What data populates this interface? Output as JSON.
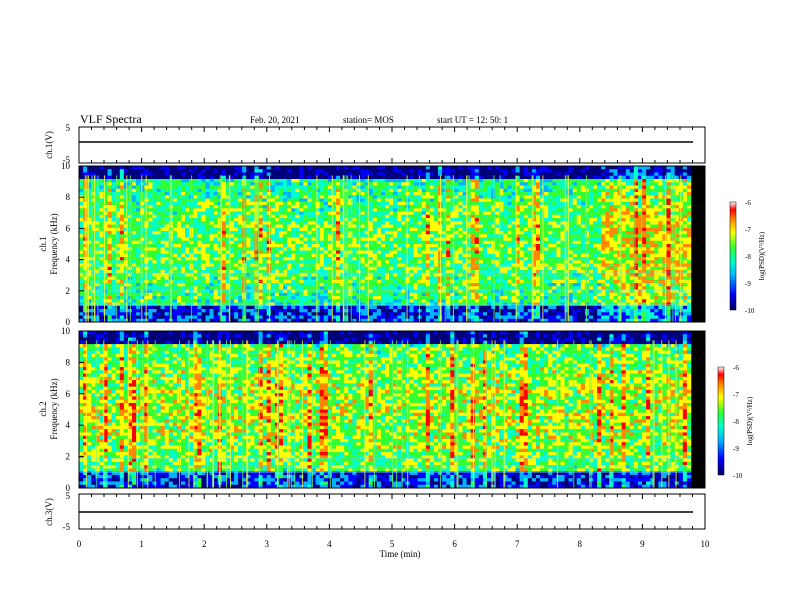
{
  "header": {
    "title": "VLF Spectra",
    "date": "Feb. 20, 2021",
    "station": "station= MOS",
    "start": "start  UT =    12: 50: 1"
  },
  "chart_data": [
    {
      "type": "line",
      "panel": "ch1-voltage",
      "ylabel": "ch.1(V)",
      "ylim": [
        -5,
        5
      ],
      "yticks": [
        "5",
        "-5"
      ],
      "x": [
        0,
        10
      ],
      "y": [
        0,
        0
      ]
    },
    {
      "type": "heatmap",
      "panel": "ch1-spectrogram",
      "ylabel": "ch.1\nFrequency (kHz)",
      "ylim": [
        0,
        10
      ],
      "yticks": [
        "0",
        "2",
        "4",
        "6",
        "8",
        "10"
      ],
      "xlim": [
        0,
        10
      ],
      "colorbar": {
        "label": "log(PSD)(V²/Hz)",
        "ticks": [
          "-6",
          "-7",
          "-8",
          "-9",
          "-10"
        ],
        "range": [
          -10,
          -6
        ]
      }
    },
    {
      "type": "heatmap",
      "panel": "ch2-spectrogram",
      "ylabel": "ch.2\nFrequency (kHz)",
      "ylim": [
        0,
        10
      ],
      "yticks": [
        "0",
        "2",
        "4",
        "6",
        "8",
        "10"
      ],
      "xlim": [
        0,
        10
      ],
      "colorbar": {
        "label": "log(PSD)(V²/Hz)",
        "ticks": [
          "-6",
          "-7",
          "-8",
          "-9",
          "-10"
        ],
        "range": [
          -10,
          -6
        ]
      }
    },
    {
      "type": "line",
      "panel": "ch3-voltage",
      "ylabel": "ch.3(V)",
      "ylim": [
        -5,
        5
      ],
      "yticks": [
        "5",
        "-5"
      ],
      "x": [
        0,
        10
      ],
      "y": [
        0,
        0
      ]
    }
  ],
  "xaxis": {
    "label": "Time (min)",
    "ticks": [
      "0",
      "1",
      "2",
      "3",
      "4",
      "5",
      "6",
      "7",
      "8",
      "9",
      "10"
    ]
  },
  "colors": {
    "colormap": [
      "#00007a",
      "#0000ff",
      "#00b4ff",
      "#00ffcc",
      "#33ff33",
      "#ffff00",
      "#ff8800",
      "#ff0000",
      "#ffffff"
    ]
  }
}
